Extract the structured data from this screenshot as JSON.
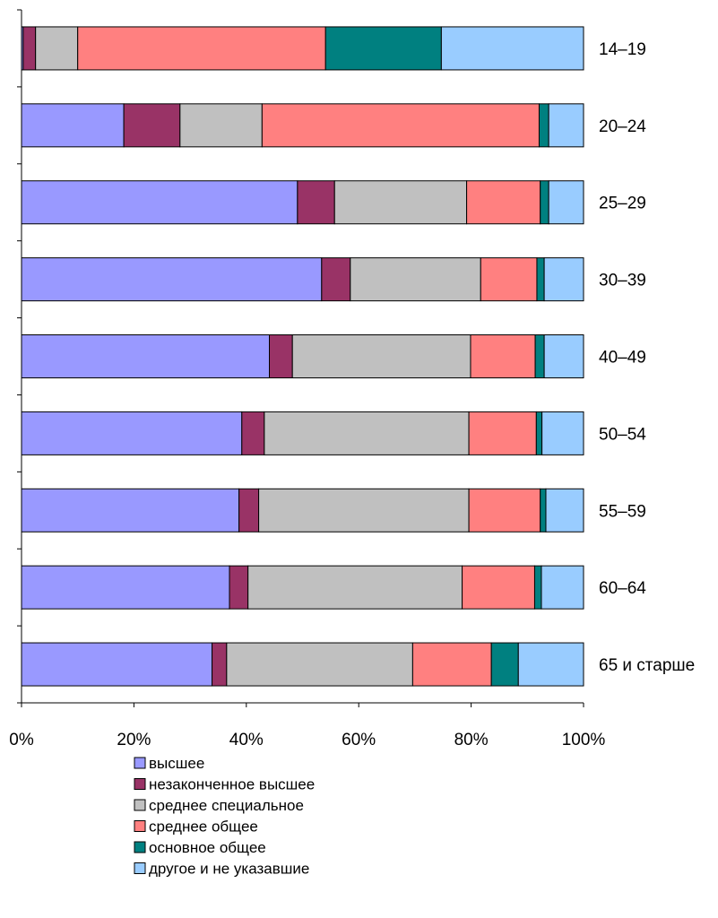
{
  "chart_data": {
    "type": "bar",
    "orientation": "horizontal",
    "stacked": "percent",
    "categories": [
      "14–19",
      "20–24",
      "25–29",
      "30–39",
      "40–49",
      "50–54",
      "55–59",
      "60–64",
      "65 и старше"
    ],
    "series": [
      {
        "name": "высшее",
        "color": "#9999ff",
        "values": [
          0.3,
          18.2,
          49.1,
          53.4,
          44.1,
          39.2,
          38.7,
          37.0,
          33.9
        ]
      },
      {
        "name": "незаконченное высшее",
        "color": "#993366",
        "values": [
          2.2,
          10.0,
          6.6,
          5.1,
          4.1,
          4.0,
          3.5,
          3.3,
          2.6
        ]
      },
      {
        "name": "среднее специальное",
        "color": "#c0c0c0",
        "values": [
          7.5,
          14.6,
          23.5,
          23.2,
          31.7,
          36.4,
          37.4,
          38.1,
          33.1
        ]
      },
      {
        "name": "среднее общее",
        "color": "#ff8080",
        "values": [
          44.1,
          49.3,
          13.1,
          10.0,
          11.5,
          12.0,
          12.7,
          12.9,
          14.0
        ]
      },
      {
        "name": "основное общее",
        "color": "#008080",
        "values": [
          20.6,
          1.7,
          1.5,
          1.3,
          1.6,
          1.0,
          1.0,
          1.2,
          4.8
        ]
      },
      {
        "name": "другое и не указавшие",
        "color": "#99ccff",
        "values": [
          25.3,
          6.2,
          6.2,
          7.0,
          7.0,
          7.4,
          6.7,
          7.5,
          11.6
        ]
      }
    ],
    "x_ticks": [
      "0%",
      "20%",
      "40%",
      "60%",
      "80%",
      "100%"
    ],
    "xlim": [
      0,
      100
    ],
    "grid": false,
    "legend_position": "bottom"
  }
}
